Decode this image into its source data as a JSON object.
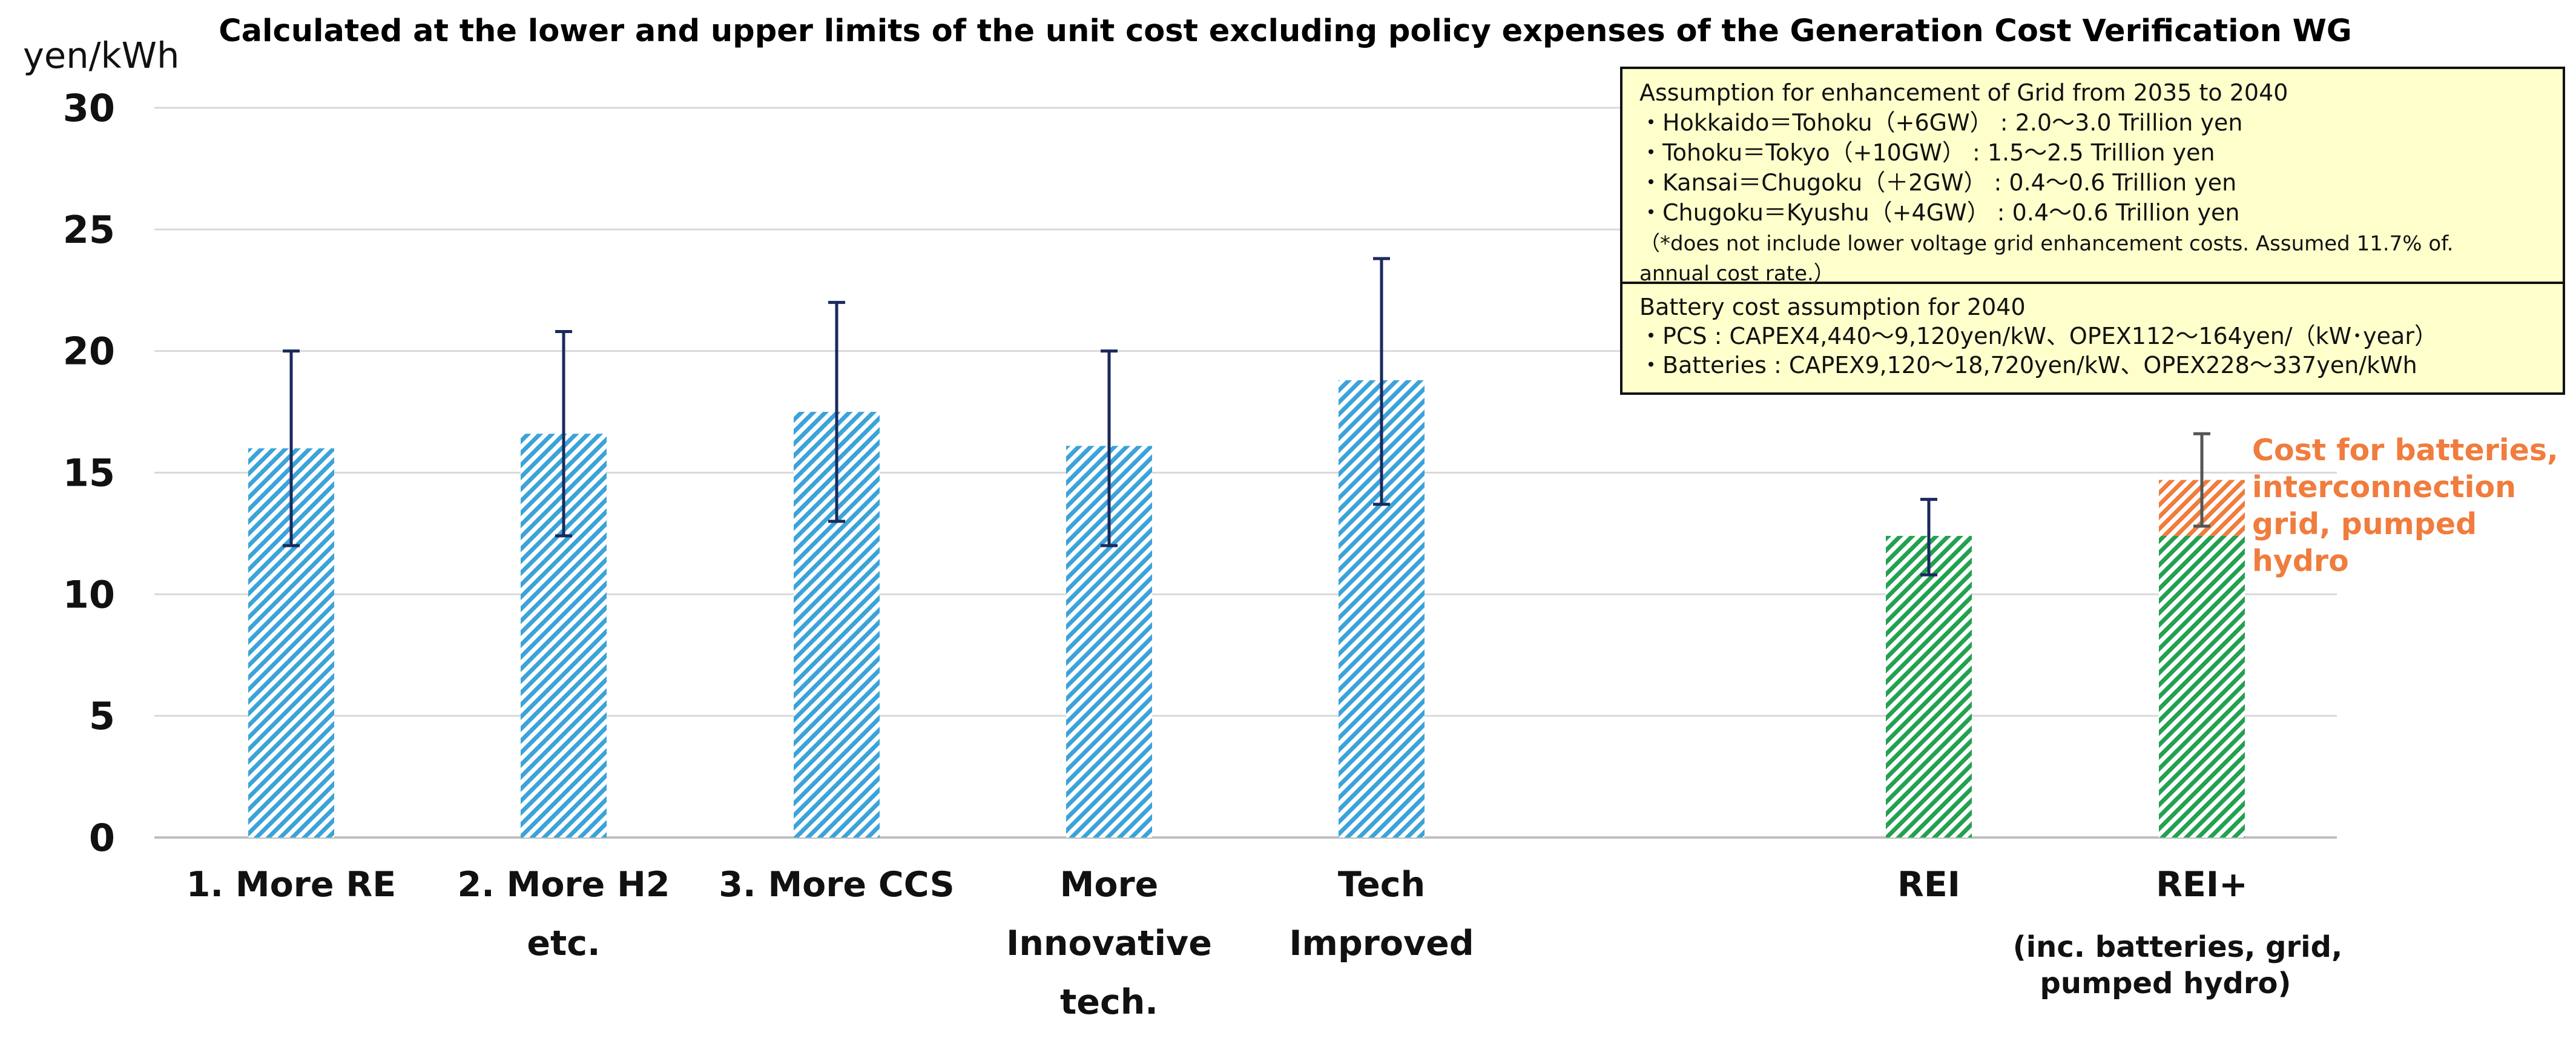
{
  "chart_data": {
    "type": "bar",
    "title": "Calculated at the lower and upper limits of the unit cost excluding policy expenses of the Generation Cost Verification WG",
    "ylabel": "yen/kWh",
    "ylim": [
      0,
      30
    ],
    "yticks": [
      "0",
      "5",
      "10",
      "15",
      "20",
      "25",
      "30"
    ],
    "grid": true,
    "categories": [
      {
        "label_lines": [
          "1. More RE"
        ]
      },
      {
        "label_lines": [
          "2. More H2",
          "etc."
        ]
      },
      {
        "label_lines": [
          "3. More CCS"
        ]
      },
      {
        "label_lines": [
          "More",
          "Innovative",
          "tech."
        ]
      },
      {
        "label_lines": [
          "Tech",
          "Improved"
        ]
      },
      {
        "label_lines": [
          "REI"
        ]
      },
      {
        "label_lines": [
          "REI+"
        ],
        "sub_lines": [
          "(inc. batteries, grid,",
          "pumped hydro)"
        ]
      }
    ],
    "series": [
      {
        "color": "#3ba3d9",
        "values": [
          16.0,
          16.6,
          17.5,
          16.1,
          18.8,
          null,
          null
        ]
      },
      {
        "color": "#23a150",
        "values": [
          null,
          null,
          null,
          null,
          null,
          12.4,
          12.4
        ]
      },
      {
        "name": "Cost for batteries, interconnection grid, pumped hydro",
        "color": "#f07c3d",
        "values": [
          null,
          null,
          null,
          null,
          null,
          null,
          2.3
        ]
      }
    ],
    "error_bars": [
      {
        "low": 12.0,
        "high": 20.0,
        "color": "#1a2a5c"
      },
      {
        "low": 12.4,
        "high": 20.8,
        "color": "#1a2a5c"
      },
      {
        "low": 13.0,
        "high": 22.0,
        "color": "#1a2a5c"
      },
      {
        "low": 12.0,
        "high": 20.0,
        "color": "#1a2a5c"
      },
      {
        "low": 13.7,
        "high": 23.8,
        "color": "#1a2a5c"
      },
      {
        "low": 10.8,
        "high": 13.9,
        "color": "#1a2a5c"
      },
      {
        "low": 12.8,
        "high": 16.6,
        "color": "#555555"
      }
    ],
    "annotation": {
      "lines": [
        "Cost for batteries,",
        "interconnection",
        "grid, pumped",
        "hydro"
      ],
      "color": "#f07c3d"
    },
    "info_boxes": [
      {
        "background": "#ffffcc",
        "lines": [
          "Assumption for enhancement of Grid from 2035 to 2040",
          "・Hokkaido＝Tohoku（+6GW） : 2.0～3.0 Trillion yen",
          "・Tohoku＝Tokyo（+10GW） : 1.5～2.5 Trillion yen",
          "・Kansai＝Chugoku（＋2GW） : 0.4～0.6 Trillion yen",
          "・Chugoku＝Kyushu（+4GW） : 0.4～0.6 Trillion yen",
          "（*does not include lower voltage grid enhancement costs. Assumed 11.7% of.",
          "annual cost rate.）"
        ]
      },
      {
        "background": "#ffffcc",
        "lines": [
          "Battery cost assumption for 2040",
          "・PCS : CAPEX4,440～9,120yen/kW、OPEX112～164yen/（kW･year）",
          "・Batteries : CAPEX9,120～18,720yen/kW、OPEX228～337yen/kWh"
        ]
      }
    ]
  }
}
